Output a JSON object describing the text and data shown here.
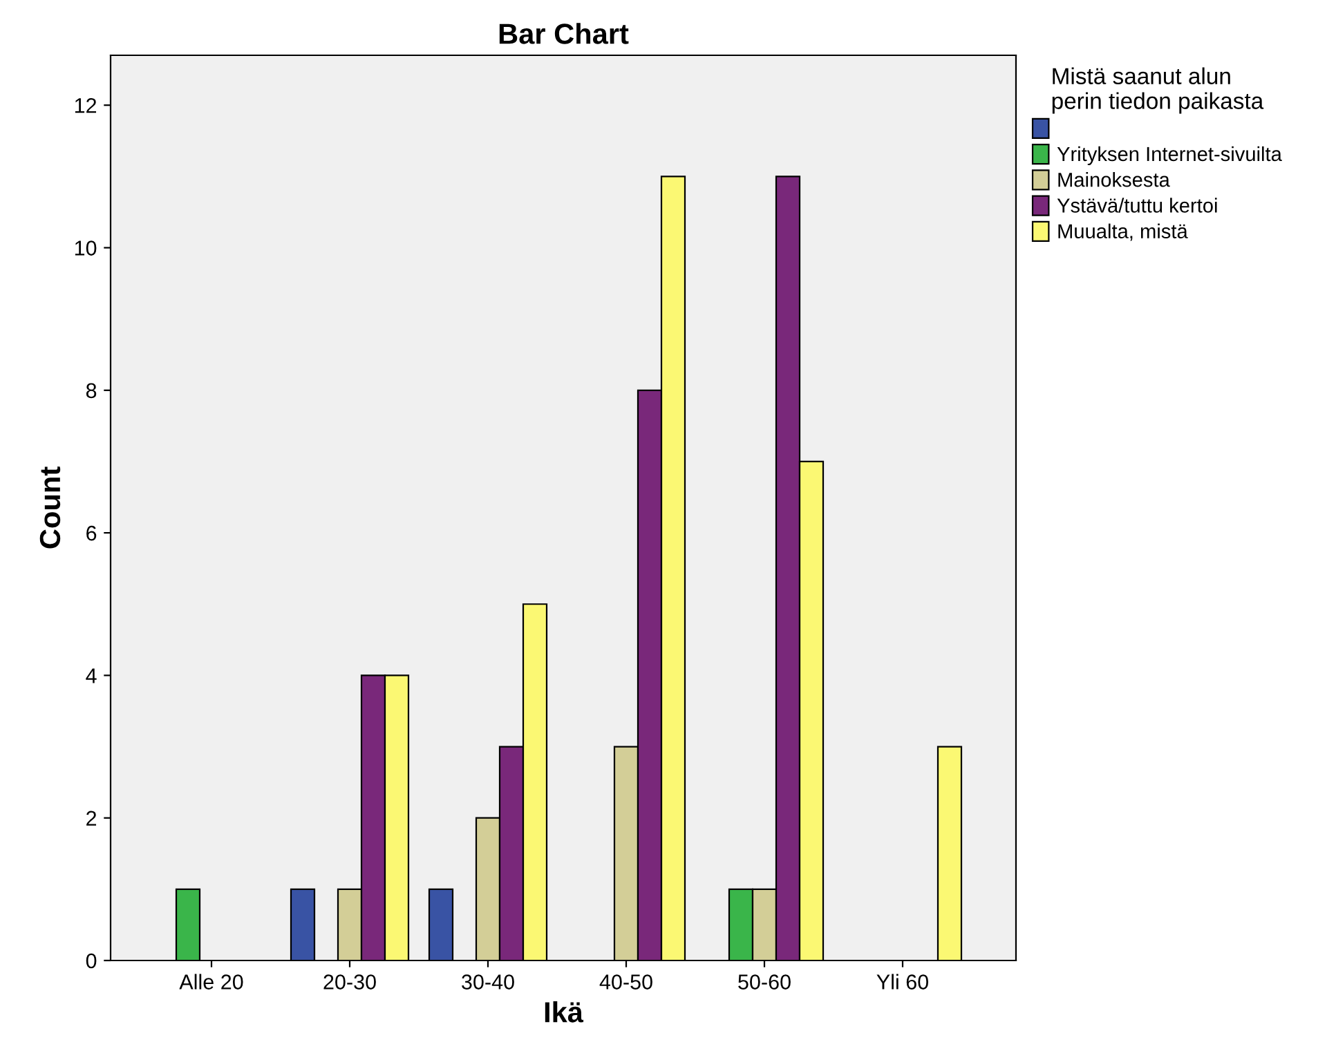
{
  "chart_data": {
    "type": "bar",
    "title": "Bar Chart",
    "xlabel": "Ikä",
    "ylabel": "Count",
    "legend_title": "Mistä saanut alun\nperin tiedon paikasta",
    "categories": [
      "Alle 20",
      "20-30",
      "30-40",
      "40-50",
      "50-60",
      "Yli 60"
    ],
    "series": [
      {
        "color": "#3953a4",
        "values": [
          null,
          1,
          1,
          null,
          null,
          null
        ]
      },
      {
        "name": "Yrityksen Internet-sivuilta",
        "color": "#3ab54a",
        "values": [
          1,
          null,
          null,
          null,
          1,
          null
        ]
      },
      {
        "name": "Mainoksesta",
        "color": "#d3ce97",
        "values": [
          null,
          1,
          2,
          3,
          1,
          null
        ]
      },
      {
        "name": "Ystävä/tuttu kertoi",
        "color": "#79287a",
        "values": [
          null,
          4,
          3,
          8,
          11,
          null
        ]
      },
      {
        "name": "Muualta, mistä",
        "color": "#fbf873",
        "values": [
          null,
          4,
          5,
          11,
          7,
          3
        ]
      }
    ],
    "ylim": [
      0,
      12.7
    ],
    "yticks": [
      0,
      2,
      4,
      6,
      8,
      10,
      12
    ],
    "grid": false,
    "legend": "right"
  }
}
